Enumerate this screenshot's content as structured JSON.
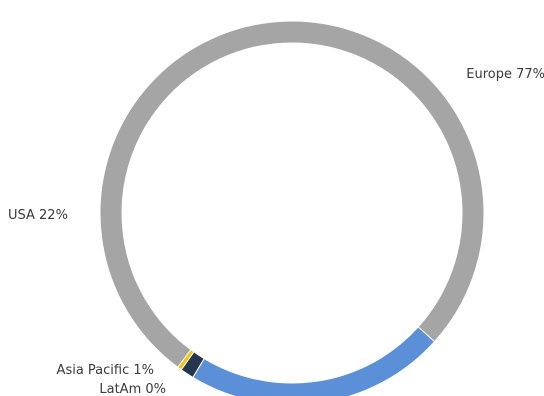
{
  "chart_data": {
    "type": "pie",
    "variant": "donut",
    "categories": [
      "Europe",
      "USA",
      "Asia Pacific",
      "LatAm"
    ],
    "values": [
      77,
      22,
      1,
      0
    ],
    "label_values": [
      "77%",
      "22%",
      "1%",
      "0%"
    ],
    "colors": [
      "#a5a5a5",
      "#5b8fd8",
      "#26364f",
      "#f2c314"
    ],
    "legend": "none"
  }
}
